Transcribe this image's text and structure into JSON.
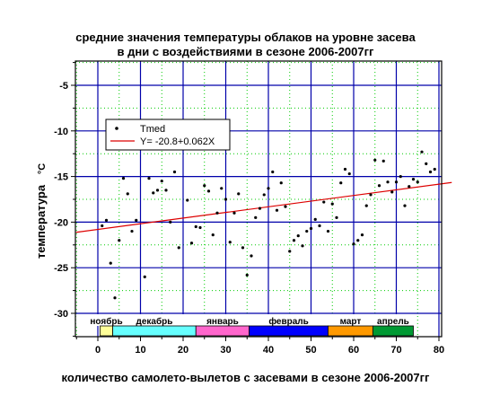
{
  "chart_data": {
    "type": "scatter",
    "title_line1": "средние значения температуры облаков на уровне засева",
    "title_line2": "в дни с воздействиями в сезоне 2006-2007гг",
    "xlabel": "количество самолето-вылетов с засевами в сезоне 2006-2007гг",
    "ylabel": "температура",
    "yunit": "°С",
    "xlim": [
      0,
      80
    ],
    "ylim": [
      -32,
      -1
    ],
    "x_ticks": [
      0,
      10,
      20,
      30,
      40,
      50,
      60,
      70,
      80
    ],
    "y_ticks": [
      -5,
      -10,
      -15,
      -20,
      -25,
      -30
    ],
    "x_tick_labels": [
      "0",
      "10",
      "20",
      "30",
      "40",
      "50",
      "60",
      "70",
      "80"
    ],
    "y_tick_labels": [
      "-5",
      "-10",
      "-15",
      "-20",
      "-25",
      "-30"
    ],
    "grid": true,
    "legend": {
      "position": "top-left",
      "points_label": "Tmed",
      "line_label": "Y= -20.8+0.062X"
    },
    "points": [
      [
        1,
        -20.4
      ],
      [
        2,
        -19.8
      ],
      [
        3,
        -24.5
      ],
      [
        4,
        -28.3
      ],
      [
        5,
        -22
      ],
      [
        6,
        -15.2
      ],
      [
        7,
        -16.9
      ],
      [
        8,
        -21
      ],
      [
        9,
        -19.8
      ],
      [
        11,
        -26
      ],
      [
        12,
        -15.2
      ],
      [
        13,
        -16.8
      ],
      [
        14,
        -16.5
      ],
      [
        15,
        -15.5
      ],
      [
        16,
        -16.5
      ],
      [
        17,
        -20
      ],
      [
        18,
        -14.5
      ],
      [
        19,
        -22.8
      ],
      [
        21,
        -17.6
      ],
      [
        22,
        -22.3
      ],
      [
        23,
        -20.5
      ],
      [
        24,
        -20.6
      ],
      [
        25,
        -16
      ],
      [
        26,
        -16.6
      ],
      [
        27,
        -21.4
      ],
      [
        28,
        -19
      ],
      [
        29,
        -16.3
      ],
      [
        30,
        -17.5
      ],
      [
        31,
        -22.2
      ],
      [
        32,
        -19
      ],
      [
        33,
        -16.9
      ],
      [
        34,
        -22.8
      ],
      [
        35,
        -25.8
      ],
      [
        36,
        -23.7
      ],
      [
        37,
        -19.5
      ],
      [
        38,
        -18.5
      ],
      [
        39,
        -17
      ],
      [
        40,
        -16.3
      ],
      [
        41,
        -14.5
      ],
      [
        42,
        -18.7
      ],
      [
        43,
        -15.7
      ],
      [
        44,
        -18.3
      ],
      [
        45,
        -23.2
      ],
      [
        46,
        -22
      ],
      [
        47,
        -21.5
      ],
      [
        48,
        -22.6
      ],
      [
        49,
        -21
      ],
      [
        50,
        -20.7
      ],
      [
        51,
        -19.7
      ],
      [
        52,
        -20.4
      ],
      [
        53,
        -17.8
      ],
      [
        54,
        -21
      ],
      [
        55,
        -18
      ],
      [
        56,
        -19.5
      ],
      [
        57,
        -15.7
      ],
      [
        58,
        -14.2
      ],
      [
        59,
        -14.7
      ],
      [
        60,
        -22.4
      ],
      [
        61,
        -22
      ],
      [
        62,
        -21.4
      ],
      [
        63,
        -18.2
      ],
      [
        64,
        -17
      ],
      [
        65,
        -13.2
      ],
      [
        66,
        -16
      ],
      [
        67,
        -13.3
      ],
      [
        68,
        -15.6
      ],
      [
        69,
        -16.7
      ],
      [
        70,
        -15.6
      ],
      [
        71,
        -15
      ],
      [
        72,
        -18.2
      ],
      [
        73,
        -16.1
      ],
      [
        74,
        -15.3
      ],
      [
        75,
        -15.6
      ],
      [
        76,
        -12.3
      ],
      [
        77,
        -13.6
      ],
      [
        78,
        -14.5
      ],
      [
        79,
        -14.2
      ]
    ],
    "fit": {
      "intercept": -20.8,
      "slope": 0.062,
      "x_range": [
        -5,
        83
      ]
    },
    "months": [
      {
        "label": "ноябрь",
        "x_start": 0.5,
        "x_end": 3.5,
        "color": "#ffff99"
      },
      {
        "label": "декабрь",
        "x_start": 3.5,
        "x_end": 23,
        "color": "#66ffff"
      },
      {
        "label": "январь",
        "x_start": 23,
        "x_end": 35.5,
        "color": "#ff66cc"
      },
      {
        "label": "февраль",
        "x_start": 35.5,
        "x_end": 54,
        "color": "#0000ff"
      },
      {
        "label": "март",
        "x_start": 54,
        "x_end": 64.5,
        "color": "#ff9900"
      },
      {
        "label": "апрель",
        "x_start": 64.5,
        "x_end": 74,
        "color": "#009933"
      }
    ]
  }
}
